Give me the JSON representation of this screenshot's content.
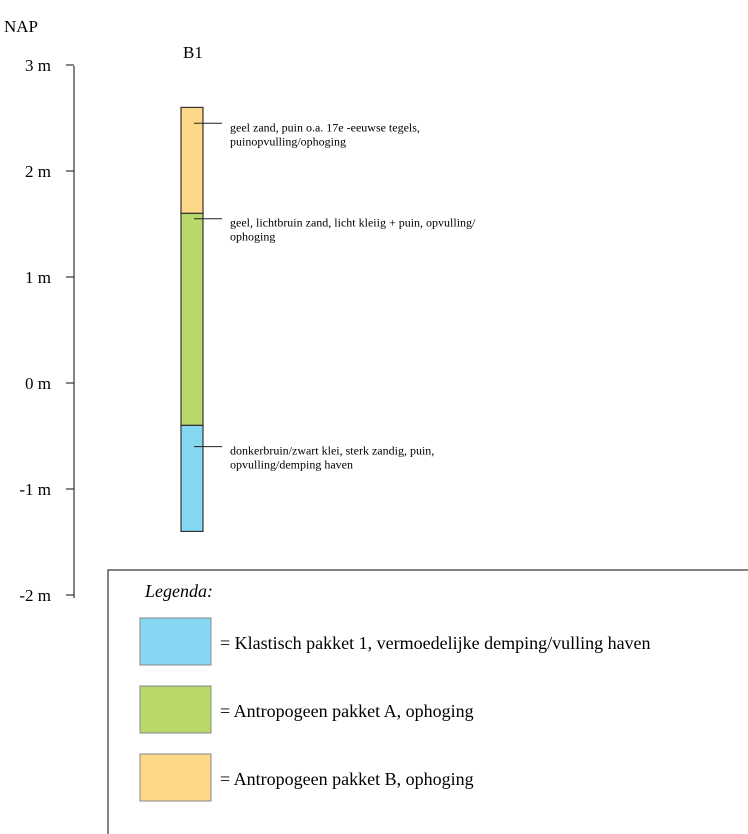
{
  "axis": {
    "title": "NAP",
    "ticks": [
      {
        "label": "3 m",
        "value": 3
      },
      {
        "label": "2 m",
        "value": 2
      },
      {
        "label": "1 m",
        "value": 1
      },
      {
        "label": "0 m",
        "value": 0
      },
      {
        "label": "-1 m",
        "value": -1
      },
      {
        "label": "-2 m",
        "value": -2
      }
    ]
  },
  "core": {
    "label": "B1",
    "layers": [
      {
        "key": "pakket-b",
        "top": 2.6,
        "bottom": 1.6,
        "color": "#FDD887"
      },
      {
        "key": "pakket-a",
        "top": 1.6,
        "bottom": -0.4,
        "color": "#B8D96A"
      },
      {
        "key": "klastisch-1",
        "top": -0.4,
        "bottom": -1.4,
        "color": "#85D7F2"
      }
    ]
  },
  "annotations": [
    {
      "value": 2.45,
      "lines": [
        "geel zand, puin o.a. 17e -eeuwse tegels,",
        "puinopvulling/ophoging"
      ]
    },
    {
      "value": 1.55,
      "lines": [
        "geel, lichtbruin zand, licht kleiig + puin, opvulling/",
        "ophoging"
      ]
    },
    {
      "value": -0.6,
      "lines": [
        "donkerbruin/zwart klei, sterk zandig, puin,",
        "opvulling/demping haven"
      ]
    }
  ],
  "legend": {
    "title": "Legenda:",
    "items": [
      {
        "color": "#85D7F2",
        "text": "= Klastisch pakket 1, vermoedelijke demping/vulling haven"
      },
      {
        "color": "#B8D96A",
        "text": "= Antropogeen pakket A, ophoging"
      },
      {
        "color": "#FDD887",
        "text": "= Antropogeen pakket B, ophoging"
      }
    ]
  }
}
